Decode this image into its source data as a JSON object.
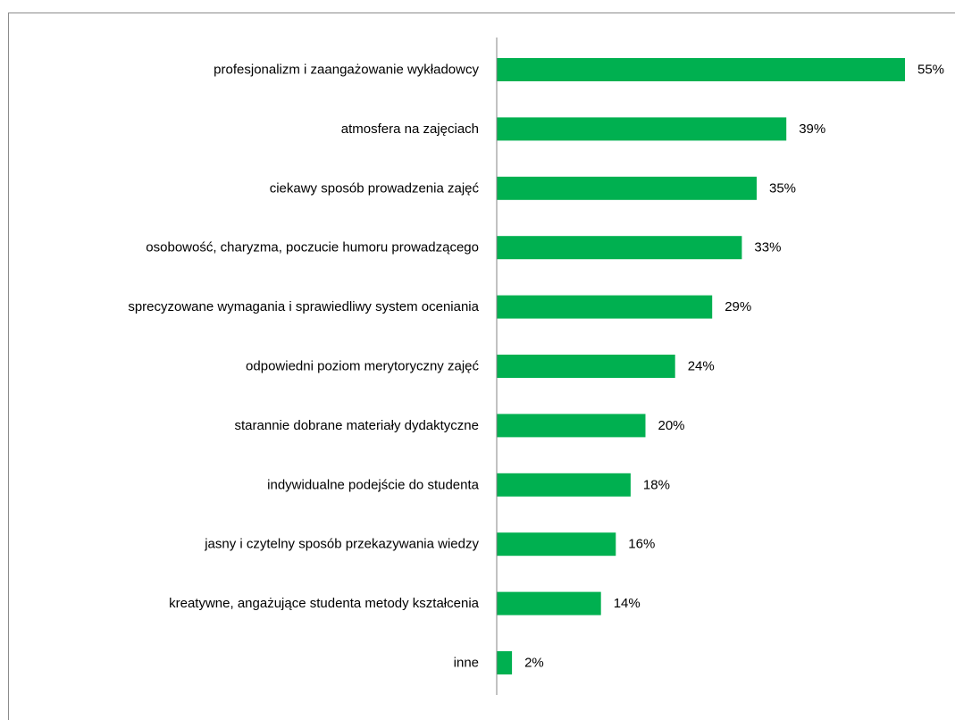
{
  "chart_data": {
    "type": "bar",
    "orientation": "horizontal",
    "categories": [
      "profesjonalizm i zaangażowanie wykładowcy",
      "atmosfera na zajęciach",
      "ciekawy sposób prowadzenia zajęć",
      "osobowość, charyzma, poczucie humoru prowadzącego",
      "sprecyzowane wymagania i sprawiedliwy system oceniania",
      "odpowiedni poziom merytoryczny zajęć",
      "starannie dobrane materiały dydaktyczne",
      "indywidualne podejście do studenta",
      "jasny i czytelny sposób przekazywania wiedzy",
      "kreatywne, angażujące studenta metody kształcenia",
      "inne"
    ],
    "values": [
      55,
      39,
      35,
      33,
      29,
      24,
      20,
      18,
      16,
      14,
      2
    ],
    "value_labels": [
      "55%",
      "39%",
      "35%",
      "33%",
      "29%",
      "24%",
      "20%",
      "18%",
      "16%",
      "14%",
      "2%"
    ],
    "unit": "%",
    "xlim": [
      0,
      55
    ],
    "grid": false,
    "bar_color": "#00b050",
    "axis_color": "#868686"
  }
}
